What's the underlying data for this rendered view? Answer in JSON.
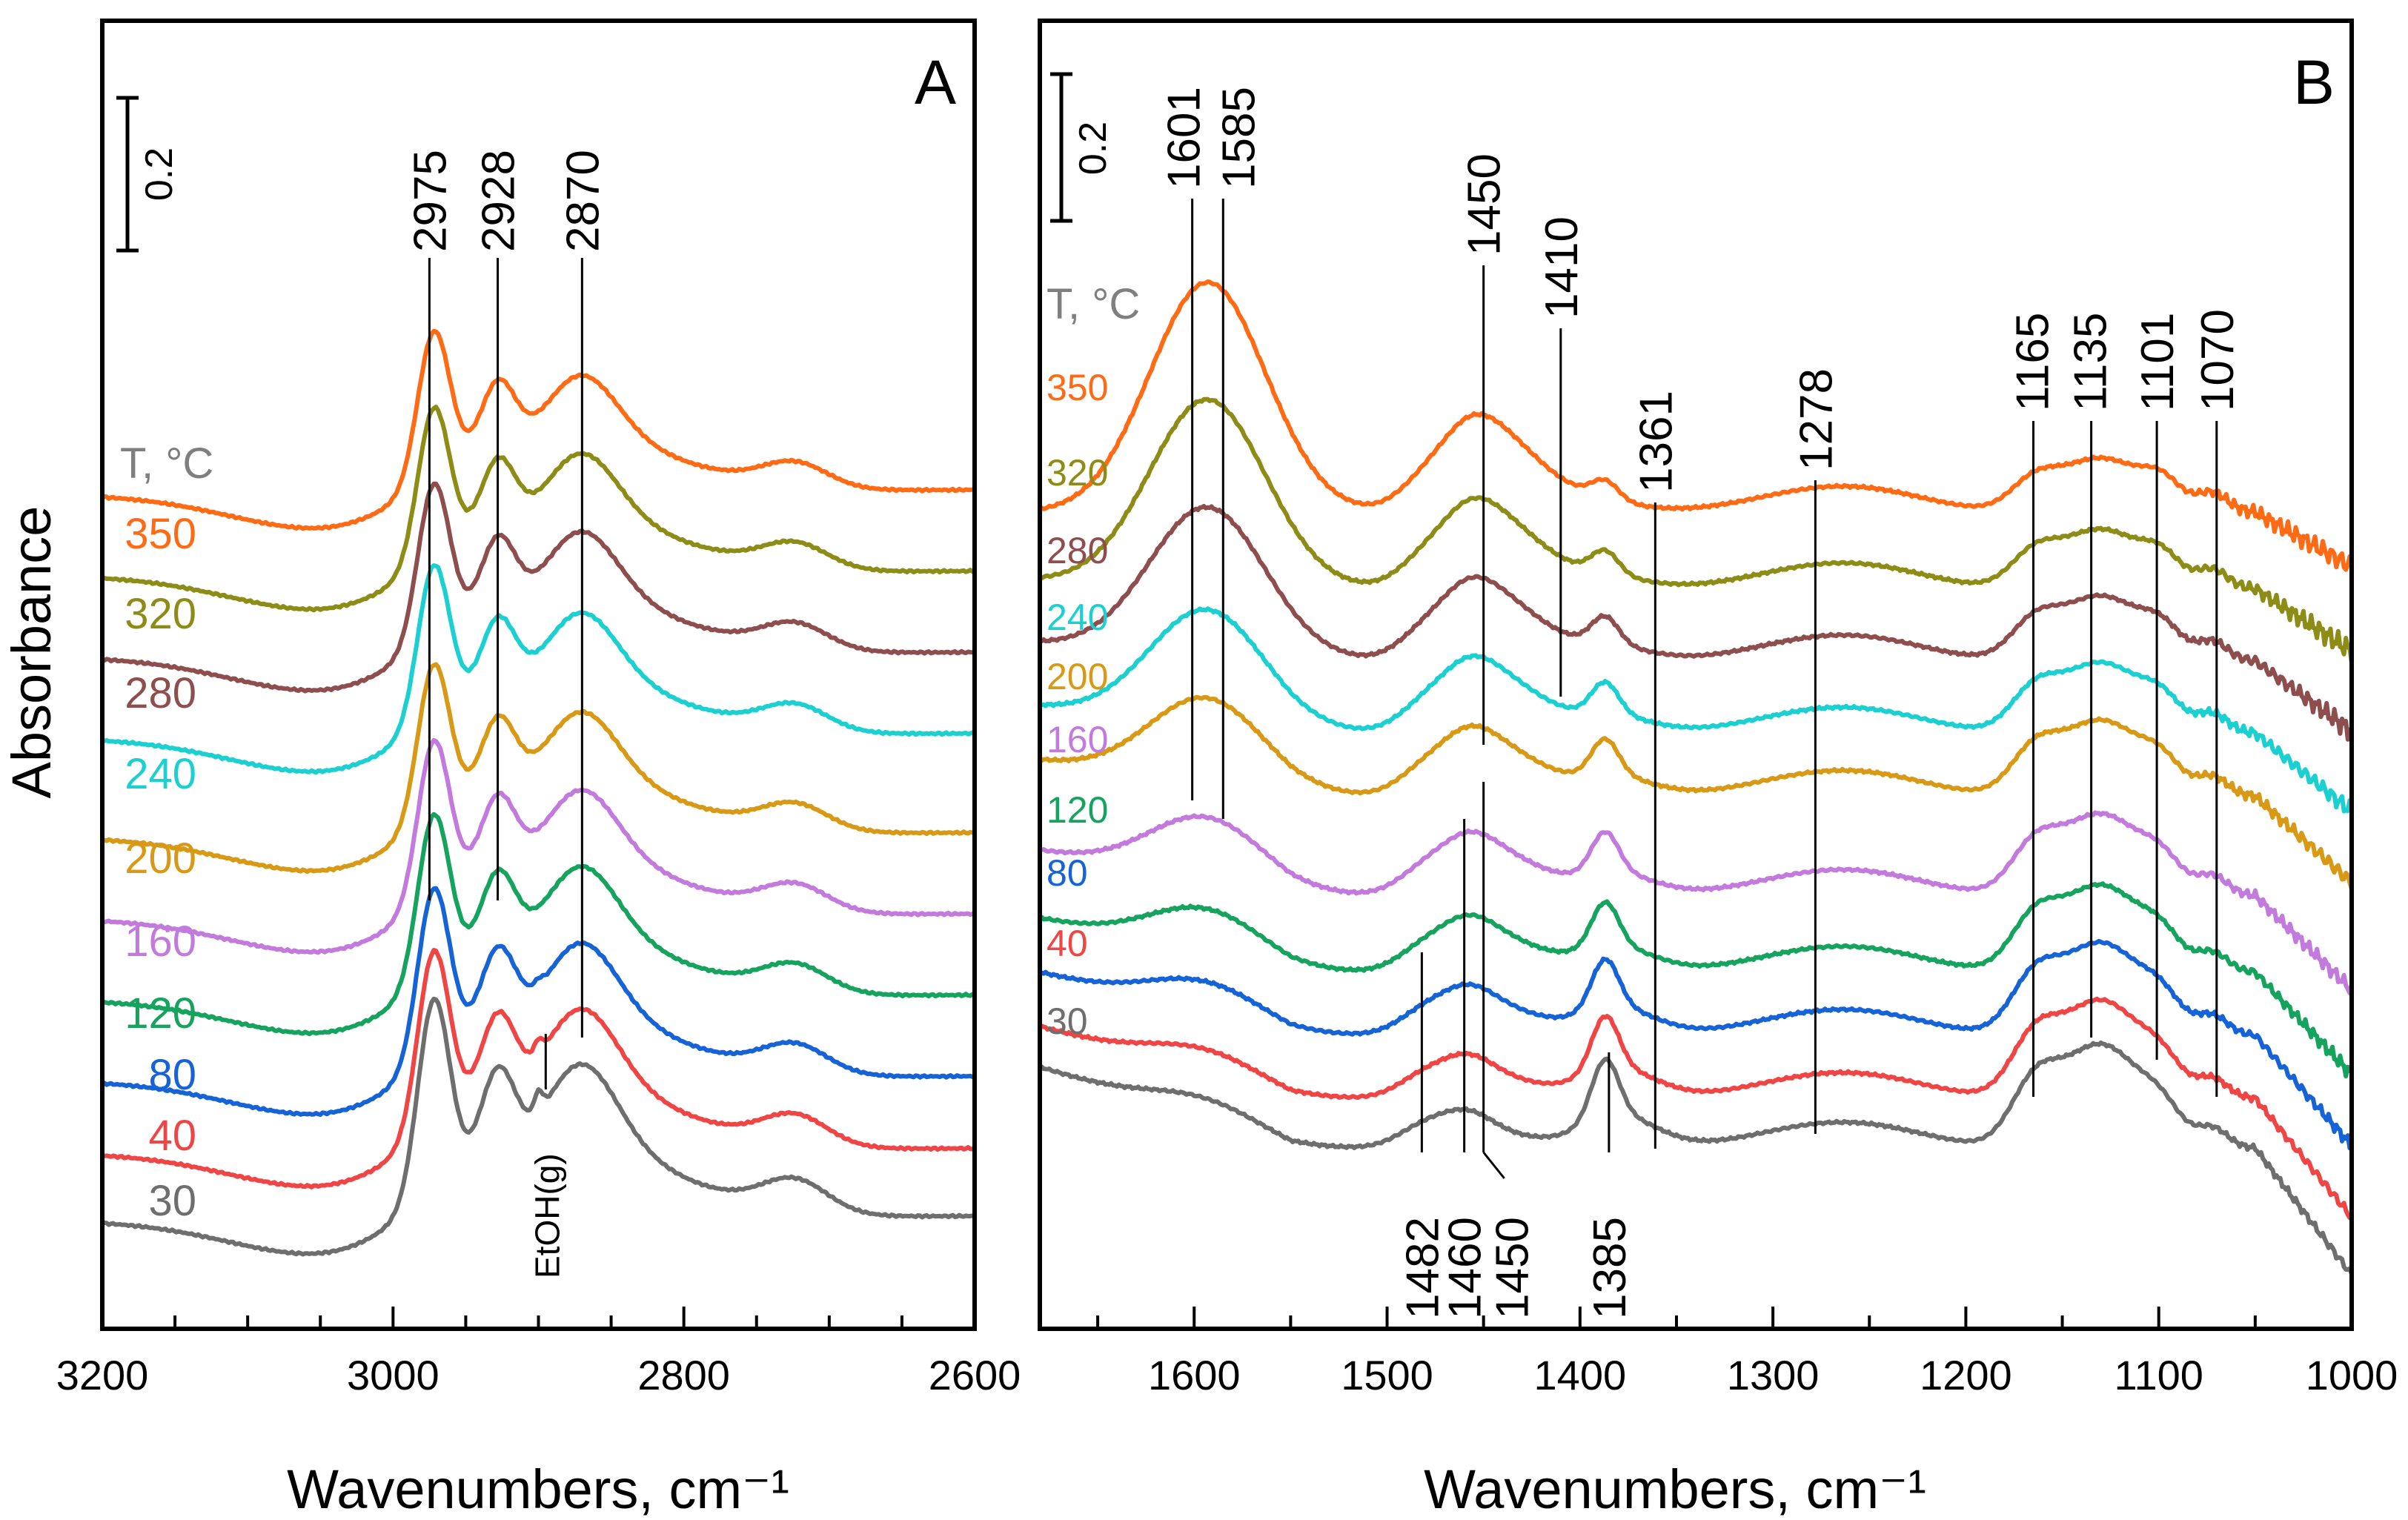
{
  "ylabel": "Absorbance",
  "legend_title": "T, °C",
  "scale_bar_label": "0.2",
  "series_colors": {
    "30": "#6e6e6e",
    "40": "#f04545",
    "80": "#1663d8",
    "120": "#16a35e",
    "160": "#c27adc",
    "200": "#d89a16",
    "240": "#1ccfd0",
    "280": "#8e4e4e",
    "320": "#8c8c16",
    "350": "#ff6a14"
  },
  "chart_data": [
    {
      "type": "line",
      "panel": "A",
      "xlabel": "Wavenumbers, cm⁻¹",
      "ylabel": "Absorbance",
      "xlim": [
        3200,
        2600
      ],
      "x_reversed": true,
      "xticks": [
        3200,
        3000,
        2800,
        2600
      ],
      "ylim": [
        0,
        14.5
      ],
      "legend_title": "T, °C",
      "series": [
        {
          "name": "30",
          "offset": 1.2,
          "amp": 1.0,
          "label": "30"
        },
        {
          "name": "40",
          "offset": 1.95,
          "amp": 0.92,
          "label": "40"
        },
        {
          "name": "80",
          "offset": 2.75,
          "amp": 0.88,
          "label": "80"
        },
        {
          "name": "120",
          "offset": 3.65,
          "amp": 0.85,
          "label": "120"
        },
        {
          "name": "160",
          "offset": 4.55,
          "amp": 0.82,
          "label": "160"
        },
        {
          "name": "200",
          "offset": 5.45,
          "amp": 0.8,
          "label": "200"
        },
        {
          "name": "240",
          "offset": 6.55,
          "amp": 0.8,
          "label": "240"
        },
        {
          "name": "280",
          "offset": 7.45,
          "amp": 0.8,
          "label": "280"
        },
        {
          "name": "320",
          "offset": 8.35,
          "amp": 0.78,
          "label": "320"
        },
        {
          "name": "350",
          "offset": 9.25,
          "amp": 0.76,
          "label": "350"
        }
      ],
      "peak_markers": [
        {
          "x": 2975,
          "label": "2975"
        },
        {
          "x": 2928,
          "label": "2928"
        },
        {
          "x": 2870,
          "label": "2870"
        }
      ],
      "annotations": [
        {
          "x": 2895,
          "label": "EtOH(g)"
        }
      ],
      "scale_bar": {
        "value": 0.2,
        "label": "0.2"
      }
    },
    {
      "type": "line",
      "panel": "B",
      "xlabel": "Wavenumbers, cm⁻¹",
      "xlim": [
        1680,
        1000
      ],
      "x_reversed": true,
      "xticks": [
        1600,
        1500,
        1400,
        1300,
        1200,
        1100,
        1000
      ],
      "ylim": [
        0,
        14.5
      ],
      "legend_title": "T, °C",
      "series": [
        {
          "name": "30",
          "offset": 2.0,
          "label": "30"
        },
        {
          "name": "40",
          "offset": 2.55,
          "label": "40"
        },
        {
          "name": "80",
          "offset": 3.25,
          "label": "80"
        },
        {
          "name": "120",
          "offset": 3.95,
          "label": "120"
        },
        {
          "name": "160",
          "offset": 4.8,
          "label": "160"
        },
        {
          "name": "200",
          "offset": 5.9,
          "label": "200"
        },
        {
          "name": "240",
          "offset": 6.6,
          "label": "240"
        },
        {
          "name": "280",
          "offset": 7.4,
          "label": "280"
        },
        {
          "name": "320",
          "offset": 8.2,
          "label": "320"
        },
        {
          "name": "350",
          "offset": 9.05,
          "label": "350"
        }
      ],
      "peak_markers_top": [
        {
          "x": 1601,
          "label": "1601"
        },
        {
          "x": 1585,
          "label": "1585"
        },
        {
          "x": 1450,
          "label": "1450"
        },
        {
          "x": 1410,
          "label": "1410"
        },
        {
          "x": 1361,
          "label": "1361"
        },
        {
          "x": 1278,
          "label": "1278"
        },
        {
          "x": 1165,
          "label": "1165"
        },
        {
          "x": 1135,
          "label": "1135"
        },
        {
          "x": 1101,
          "label": "1101"
        },
        {
          "x": 1070,
          "label": "1070"
        }
      ],
      "peak_markers_bottom": [
        {
          "x": 1482,
          "label": "1482"
        },
        {
          "x": 1460,
          "label": "1460"
        },
        {
          "x": 1450,
          "label": "1450"
        },
        {
          "x": 1385,
          "label": "1385"
        }
      ],
      "scale_bar": {
        "value": 0.2,
        "label": "0.2"
      }
    }
  ]
}
